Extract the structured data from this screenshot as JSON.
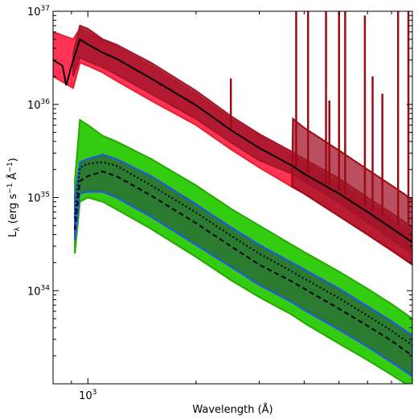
{
  "chart_data": {
    "type": "area",
    "xlabel": "Wavelength (Å)",
    "ylabel": "L",
    "ylabel_sub": "λ",
    "ylabel_units": "(erg s",
    "ylabel_units_sup1": "−1",
    "ylabel_units_mid": " Å",
    "ylabel_units_sup2": "−1",
    "ylabel_units_end": ")",
    "x_scale": "log",
    "y_scale": "log",
    "xlim": [
      800,
      8000
    ],
    "ylim": [
      1e+33,
      1e+37
    ],
    "x_tick_labels": [
      {
        "value": 1000,
        "base": "10",
        "exp": "3"
      }
    ],
    "y_tick_labels": [
      {
        "value": 1e+34,
        "base": "10",
        "exp": "34"
      },
      {
        "value": 1e+35,
        "base": "10",
        "exp": "35"
      },
      {
        "value": 1e+36,
        "base": "10",
        "exp": "36"
      },
      {
        "value": 1e+37,
        "base": "10",
        "exp": "37"
      }
    ],
    "grid": false,
    "colors": {
      "red_band": "#ff3355",
      "red_band_edge": "#e8202c",
      "darkred_band": "#a3162a",
      "darkred_line": "#9b0b16",
      "green_band": "#33cc11",
      "green_band_edge": "#22aa00",
      "darkgreen_band": "#2a7a30",
      "blue_edge": "#2255ee",
      "black_line": "#000000"
    },
    "series": [
      {
        "style": "red-outer-band",
        "x": [
          800,
          910,
          950,
          1000,
          1100,
          1200,
          1500,
          2000,
          2500,
          3000,
          3700,
          4000,
          5000,
          6000,
          7000,
          8000
        ],
        "upper": [
          6e+36,
          5e+36,
          6.5e+36,
          6e+36,
          4.8e+36,
          4.2e+36,
          2.6e+36,
          1.3e+36,
          7e+35,
          4.6e+35,
          2.9e+35,
          2.4e+35,
          1.4e+35,
          9e+34,
          6e+34,
          4.2e+34
        ],
        "lower": [
          2e+36,
          1.5e+36,
          2.8e+36,
          2.6e+36,
          2.2e+36,
          1.8e+36,
          1.1e+36,
          6e+35,
          3.3e+35,
          2.1e+35,
          1.3e+35,
          1.1e+35,
          6.3e+34,
          4e+34,
          2.7e+34,
          1.9e+34
        ]
      },
      {
        "style": "darkred-inner-band",
        "x": [
          910,
          950,
          1000,
          1100,
          1200,
          1500,
          2000,
          2500,
          3000,
          3700,
          4000,
          5000,
          6000,
          7000,
          8000
        ],
        "upper": [
          3.5e+36,
          7e+36,
          6.5e+36,
          5e+36,
          4.4e+36,
          2.8e+36,
          1.4e+36,
          7.5e+35,
          4.8e+35,
          3.1e+35,
          2.6e+35,
          1.6e+35,
          1e+35,
          6.8e+34,
          4.8e+34
        ],
        "lower": [
          2e+36,
          3.2e+36,
          2.9e+36,
          2.5e+36,
          2.1e+36,
          1.3e+36,
          7e+35,
          3.9e+35,
          2.5e+35,
          1.8e+35,
          1.5e+35,
          8.8e+34,
          5.4e+34,
          3.6e+34,
          2.5e+34
        ]
      },
      {
        "style": "black-median-line",
        "x": [
          800,
          850,
          870,
          900,
          950,
          1000,
          1100,
          1200,
          1500,
          2000,
          2500,
          3000,
          3700,
          4000,
          5000,
          6000,
          7000,
          8000
        ],
        "y": [
          3e+36,
          2.6e+36,
          1.6e+36,
          2.6e+36,
          5e+36,
          4.4e+36,
          3.6e+36,
          3.1e+36,
          1.9e+36,
          9.8e+35,
          5.3e+35,
          3.4e+35,
          2.2e+35,
          1.8e+35,
          1.1e+35,
          7e+34,
          4.7e+34,
          3.3e+34
        ]
      },
      {
        "style": "green-outer-band",
        "x": [
          920,
          950,
          1000,
          1100,
          1200,
          1500,
          2000,
          2500,
          3000,
          3700,
          4000,
          5000,
          6000,
          7000,
          8000
        ],
        "upper": [
          1.5e+35,
          6.8e+35,
          6e+35,
          4.6e+35,
          4e+35,
          2.6e+35,
          1.35e+35,
          7.6e+34,
          5e+34,
          3.1e+34,
          2.6e+34,
          1.6e+34,
          1.05e+34,
          7.2e+33,
          5e+33
        ],
        "lower": [
          2.5e+34,
          9e+34,
          1e+35,
          9e+34,
          7.5e+34,
          4.6e+34,
          2.3e+34,
          1.3e+34,
          8.5e+33,
          5.5e+33,
          4.5e+33,
          2.7e+33,
          1.8e+33,
          1.25e+33,
          9e+32
        ]
      },
      {
        "style": "darkgreen-inner-band",
        "x": [
          920,
          950,
          1000,
          1100,
          1200,
          1500,
          2000,
          2500,
          3000,
          3700,
          4000,
          5000,
          6000,
          7000,
          8000
        ],
        "upper": [
          1e+35,
          2.4e+35,
          2.6e+35,
          2.9e+35,
          2.6e+35,
          1.7e+35,
          8.5e+34,
          4.8e+34,
          3.1e+34,
          2e+34,
          1.7e+34,
          1.05e+34,
          6.8e+33,
          4.7e+33,
          3.3e+33
        ],
        "lower": [
          3.5e+34,
          1.1e+35,
          1.15e+35,
          1.15e+35,
          1e+35,
          6.2e+34,
          3.1e+34,
          1.8e+34,
          1.15e+34,
          7.5e+33,
          6.2e+33,
          3.8e+33,
          2.5e+33,
          1.7e+33,
          1.2e+33
        ]
      },
      {
        "style": "black-dashed-line",
        "x": [
          920,
          950,
          1000,
          1100,
          1200,
          1500,
          2000,
          2500,
          3000,
          3700,
          4000,
          5000,
          6000,
          7000,
          8000
        ],
        "y": [
          4.5e+34,
          1.5e+35,
          1.7e+35,
          1.9e+35,
          1.7e+35,
          1.05e+35,
          5.3e+34,
          3e+34,
          1.9e+34,
          1.25e+34,
          1.05e+34,
          6.4e+33,
          4.2e+33,
          2.9e+33,
          2e+33
        ]
      },
      {
        "style": "black-dotted-line",
        "x": [
          920,
          950,
          1000,
          1100,
          1200,
          1500,
          2000,
          2500,
          3000,
          3700,
          4000,
          5000,
          6000,
          7000,
          8000
        ],
        "y": [
          6e+34,
          2.1e+35,
          2.3e+35,
          2.4e+35,
          2.2e+35,
          1.35e+35,
          6.9e+34,
          3.9e+34,
          2.5e+34,
          1.6e+34,
          1.35e+34,
          8.3e+33,
          5.4e+33,
          3.7e+33,
          2.6e+33
        ]
      }
    ],
    "emission_spikes": {
      "x": [
        2500,
        3800,
        4100,
        4600,
        4700,
        5000,
        5200,
        5900,
        6200,
        6600,
        7300,
        7800
      ],
      "peak": [
        1.9e+36,
        1e+37,
        1e+37,
        1e+37,
        1.1e+36,
        1e+37,
        1e+37,
        9e+36,
        2e+36,
        1.3e+36,
        1e+37,
        1e+37
      ]
    },
    "red_continuum_jump": {
      "x": [
        3700,
        3720,
        4000,
        5000,
        6000,
        7000,
        8000
      ],
      "upper": [
        1.6e+35,
        7e+35,
        5.6e+35,
        3.2e+35,
        2e+35,
        1.35e+35,
        9.5e+34
      ],
      "lower": [
        1.3e+35,
        1.3e+35,
        1.1e+35,
        6.3e+34,
        4e+34,
        2.7e+34,
        1.9e+34
      ]
    }
  }
}
